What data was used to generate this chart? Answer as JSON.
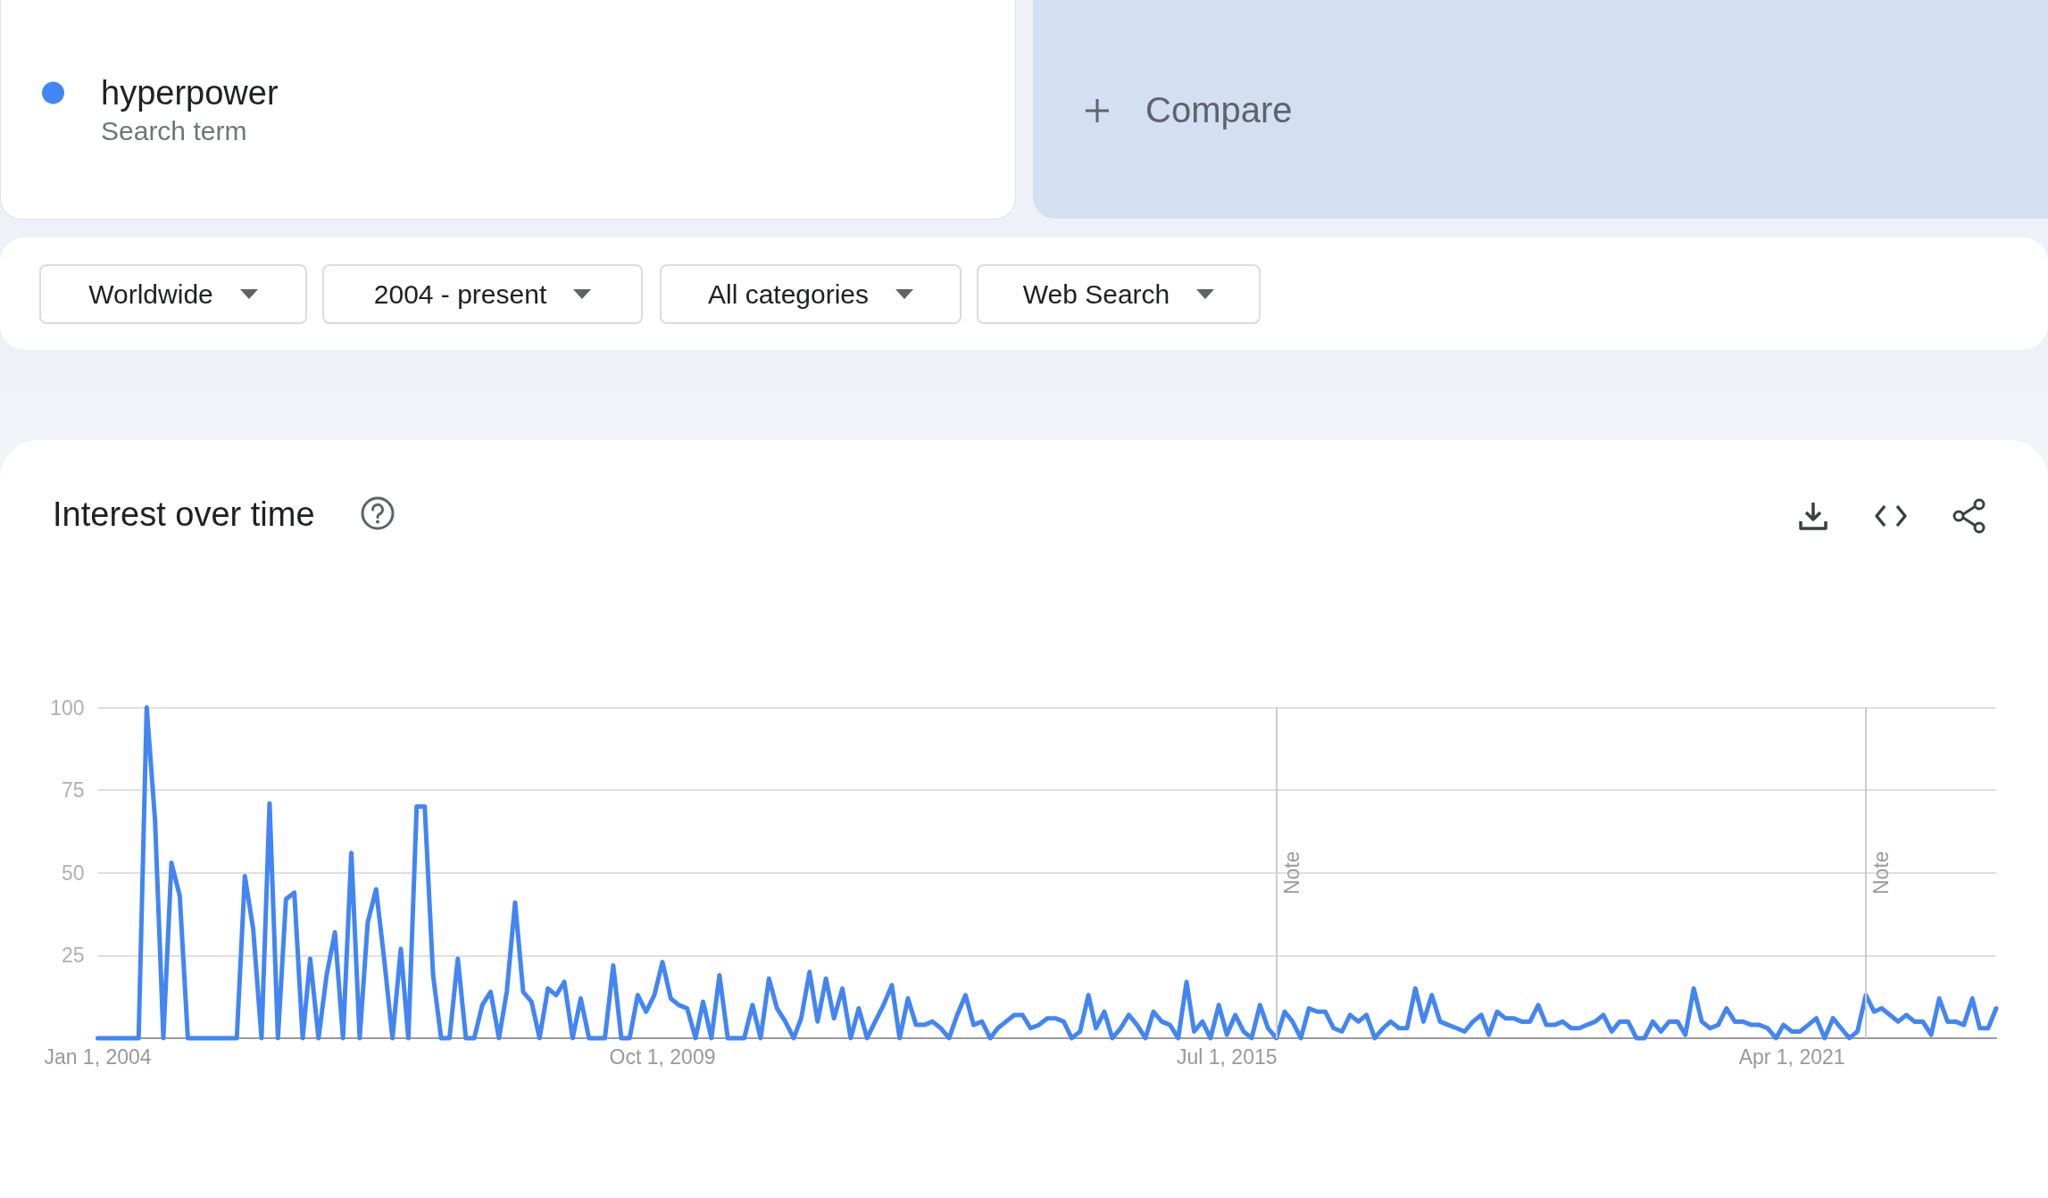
{
  "chart_data": {
    "type": "line",
    "title": "Interest over time",
    "annotations": [
      "Search term",
      "Compare",
      "Worldwide",
      "2004 - present",
      "All categories",
      "Web Search"
    ],
    "x": [
      "2004-01",
      "2004-02",
      "2004-03",
      "2004-04",
      "2004-05",
      "2004-06",
      "2004-07",
      "2004-08",
      "2004-09",
      "2004-10",
      "2004-11",
      "2004-12",
      "2005-01",
      "2005-02",
      "2005-03",
      "2005-04",
      "2005-05",
      "2005-06",
      "2005-07",
      "2005-08",
      "2005-09",
      "2005-10",
      "2005-11",
      "2005-12",
      "2006-01",
      "2006-02",
      "2006-03",
      "2006-04",
      "2006-05",
      "2006-06",
      "2006-07",
      "2006-08",
      "2006-09",
      "2006-10",
      "2006-11",
      "2006-12",
      "2007-01",
      "2007-02",
      "2007-03",
      "2007-04",
      "2007-05",
      "2007-06",
      "2007-07",
      "2007-08",
      "2007-09",
      "2007-10",
      "2007-11",
      "2007-12",
      "2008-01",
      "2008-02",
      "2008-03",
      "2008-04",
      "2008-05",
      "2008-06",
      "2008-07",
      "2008-08",
      "2008-09",
      "2008-10",
      "2008-11",
      "2008-12",
      "2009-01",
      "2009-02",
      "2009-03",
      "2009-04",
      "2009-05",
      "2009-06",
      "2009-07",
      "2009-08",
      "2009-09",
      "2009-10",
      "2009-11",
      "2009-12",
      "2010-01",
      "2010-02",
      "2010-03",
      "2010-04",
      "2010-05",
      "2010-06",
      "2010-07",
      "2010-08",
      "2010-09",
      "2010-10",
      "2010-11",
      "2010-12",
      "2011-01",
      "2011-02",
      "2011-03",
      "2011-04",
      "2011-05",
      "2011-06",
      "2011-07",
      "2011-08",
      "2011-09",
      "2011-10",
      "2011-11",
      "2011-12",
      "2012-01",
      "2012-02",
      "2012-03",
      "2012-04",
      "2012-05",
      "2012-06",
      "2012-07",
      "2012-08",
      "2012-09",
      "2012-10",
      "2012-11",
      "2012-12",
      "2013-01",
      "2013-02",
      "2013-03",
      "2013-04",
      "2013-05",
      "2013-06",
      "2013-07",
      "2013-08",
      "2013-09",
      "2013-10",
      "2013-11",
      "2013-12",
      "2014-01",
      "2014-02",
      "2014-03",
      "2014-04",
      "2014-05",
      "2014-06",
      "2014-07",
      "2014-08",
      "2014-09",
      "2014-10",
      "2014-11",
      "2014-12",
      "2015-01",
      "2015-02",
      "2015-03",
      "2015-04",
      "2015-05",
      "2015-06",
      "2015-07",
      "2015-08",
      "2015-09",
      "2015-10",
      "2015-11",
      "2015-12",
      "2016-01",
      "2016-02",
      "2016-03",
      "2016-04",
      "2016-05",
      "2016-06",
      "2016-07",
      "2016-08",
      "2016-09",
      "2016-10",
      "2016-11",
      "2016-12",
      "2017-01",
      "2017-02",
      "2017-03",
      "2017-04",
      "2017-05",
      "2017-06",
      "2017-07",
      "2017-08",
      "2017-09",
      "2017-10",
      "2017-11",
      "2017-12",
      "2018-01",
      "2018-02",
      "2018-03",
      "2018-04",
      "2018-05",
      "2018-06",
      "2018-07",
      "2018-08",
      "2018-09",
      "2018-10",
      "2018-11",
      "2018-12",
      "2019-01",
      "2019-02",
      "2019-03",
      "2019-04",
      "2019-05",
      "2019-06",
      "2019-07",
      "2019-08",
      "2019-09",
      "2019-10",
      "2019-11",
      "2019-12",
      "2020-01",
      "2020-02",
      "2020-03",
      "2020-04",
      "2020-05",
      "2020-06",
      "2020-07",
      "2020-08",
      "2020-09",
      "2020-10",
      "2020-11",
      "2020-12",
      "2021-01",
      "2021-02",
      "2021-03",
      "2021-04",
      "2021-05",
      "2021-06",
      "2021-07",
      "2021-08",
      "2021-09",
      "2021-10",
      "2021-11",
      "2021-12",
      "2022-01",
      "2022-02",
      "2022-03",
      "2022-04",
      "2022-05",
      "2022-06",
      "2022-07",
      "2022-08",
      "2022-09",
      "2022-10",
      "2022-11",
      "2022-12",
      "2023-01",
      "2023-02",
      "2023-03",
      "2023-04",
      "2023-05"
    ],
    "series": [
      {
        "name": "hyperpower",
        "color": "#4285f4",
        "values": [
          0,
          0,
          0,
          0,
          0,
          0,
          100,
          66,
          0,
          53,
          43,
          0,
          0,
          0,
          0,
          0,
          0,
          0,
          49,
          33,
          0,
          71,
          0,
          42,
          44,
          0,
          24,
          0,
          19,
          32,
          0,
          56,
          0,
          35,
          45,
          24,
          0,
          27,
          0,
          70,
          70,
          19,
          0,
          0,
          24,
          0,
          0,
          10,
          14,
          0,
          14,
          41,
          14,
          11,
          0,
          15,
          13,
          17,
          0,
          12,
          0,
          0,
          0,
          22,
          0,
          0,
          13,
          8,
          13,
          23,
          12,
          10,
          9,
          0,
          11,
          0,
          19,
          0,
          0,
          0,
          10,
          0,
          18,
          9,
          5,
          0,
          6,
          20,
          5,
          18,
          6,
          15,
          0,
          9,
          0,
          5,
          10,
          16,
          0,
          12,
          4,
          4,
          5,
          3,
          0,
          7,
          13,
          4,
          5,
          0,
          3,
          5,
          7,
          7,
          3,
          4,
          6,
          6,
          5,
          0,
          2,
          13,
          3,
          8,
          0,
          3,
          7,
          4,
          0,
          8,
          5,
          4,
          0,
          17,
          2,
          5,
          0,
          10,
          1,
          7,
          2,
          0,
          10,
          3,
          0,
          8,
          5,
          0,
          9,
          8,
          8,
          3,
          2,
          7,
          5,
          7,
          0,
          3,
          5,
          3,
          3,
          15,
          5,
          13,
          5,
          4,
          3,
          2,
          5,
          7,
          1,
          8,
          6,
          6,
          5,
          5,
          10,
          4,
          4,
          5,
          3,
          3,
          4,
          5,
          7,
          2,
          5,
          5,
          0,
          0,
          5,
          2,
          5,
          5,
          1,
          15,
          5,
          3,
          4,
          9,
          5,
          5,
          4,
          4,
          3,
          0,
          4,
          2,
          2,
          4,
          6,
          0,
          6,
          3,
          0,
          2,
          13,
          8,
          9,
          7,
          5,
          7,
          5,
          5,
          1,
          12,
          5,
          5,
          4,
          12,
          3,
          3,
          9
        ]
      }
    ],
    "xlim": [
      "2004-01-01",
      "2023-05-01"
    ],
    "ylim": [
      0,
      100
    ],
    "xticks": [
      {
        "value": "2004-01-01",
        "label": "Jan 1, 2004"
      },
      {
        "value": "2009-10-01",
        "label": "Oct 1, 2009"
      },
      {
        "value": "2015-07-01",
        "label": "Jul 1, 2015"
      },
      {
        "value": "2021-04-01",
        "label": "Apr 1, 2021"
      }
    ],
    "yticks": [
      {
        "value": 0,
        "label": null
      },
      25,
      50,
      75,
      100
    ],
    "grid": "y",
    "legend": "top left",
    "marker": "none",
    "line_style": "solid",
    "ref_lines": [
      {
        "axis": "x",
        "value": "2016-01-01",
        "label": "Note",
        "color": "#cccccc"
      },
      {
        "axis": "x",
        "value": "2022-01-01",
        "label": "Note",
        "color": "#cccccc"
      }
    ]
  }
}
